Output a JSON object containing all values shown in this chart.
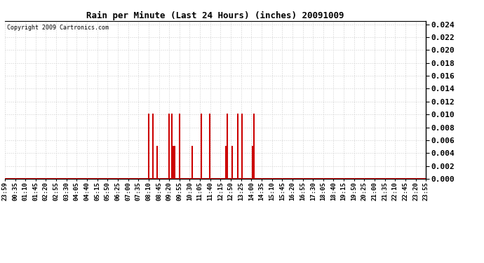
{
  "title": "Rain per Minute (Last 24 Hours) (inches) 20091009",
  "copyright": "Copyright 2009 Cartronics.com",
  "background_color": "#ffffff",
  "plot_bg_color": "#ffffff",
  "line_color": "#cc0000",
  "baseline_color": "#cc0000",
  "grid_color": "#cccccc",
  "ylim": [
    0.0,
    0.0245
  ],
  "yticks": [
    0.0,
    0.002,
    0.004,
    0.006,
    0.008,
    0.01,
    0.012,
    0.014,
    0.016,
    0.018,
    0.02,
    0.022,
    0.024
  ],
  "time_labels": [
    "23:59",
    "00:35",
    "01:10",
    "01:45",
    "02:20",
    "02:55",
    "03:30",
    "04:05",
    "04:40",
    "05:15",
    "05:50",
    "06:25",
    "07:00",
    "07:35",
    "08:10",
    "08:45",
    "09:20",
    "09:55",
    "10:30",
    "11:05",
    "11:40",
    "12:15",
    "12:50",
    "13:25",
    "14:00",
    "14:35",
    "15:10",
    "15:45",
    "16:20",
    "16:55",
    "17:30",
    "18:05",
    "18:40",
    "19:15",
    "19:50",
    "20:25",
    "21:00",
    "21:35",
    "22:10",
    "22:45",
    "23:20",
    "23:55"
  ],
  "num_points": 1440,
  "spikes": [
    {
      "index": 491,
      "value": 0.01
    },
    {
      "index": 506,
      "value": 0.01
    },
    {
      "index": 521,
      "value": 0.005
    },
    {
      "index": 561,
      "value": 0.01
    },
    {
      "index": 571,
      "value": 0.01
    },
    {
      "index": 576,
      "value": 0.005
    },
    {
      "index": 581,
      "value": 0.005
    },
    {
      "index": 596,
      "value": 0.01
    },
    {
      "index": 641,
      "value": 0.005
    },
    {
      "index": 671,
      "value": 0.01
    },
    {
      "index": 701,
      "value": 0.01
    },
    {
      "index": 756,
      "value": 0.005
    },
    {
      "index": 761,
      "value": 0.01
    },
    {
      "index": 776,
      "value": 0.005
    },
    {
      "index": 796,
      "value": 0.01
    },
    {
      "index": 811,
      "value": 0.01
    },
    {
      "index": 846,
      "value": 0.005
    },
    {
      "index": 851,
      "value": 0.01
    }
  ]
}
